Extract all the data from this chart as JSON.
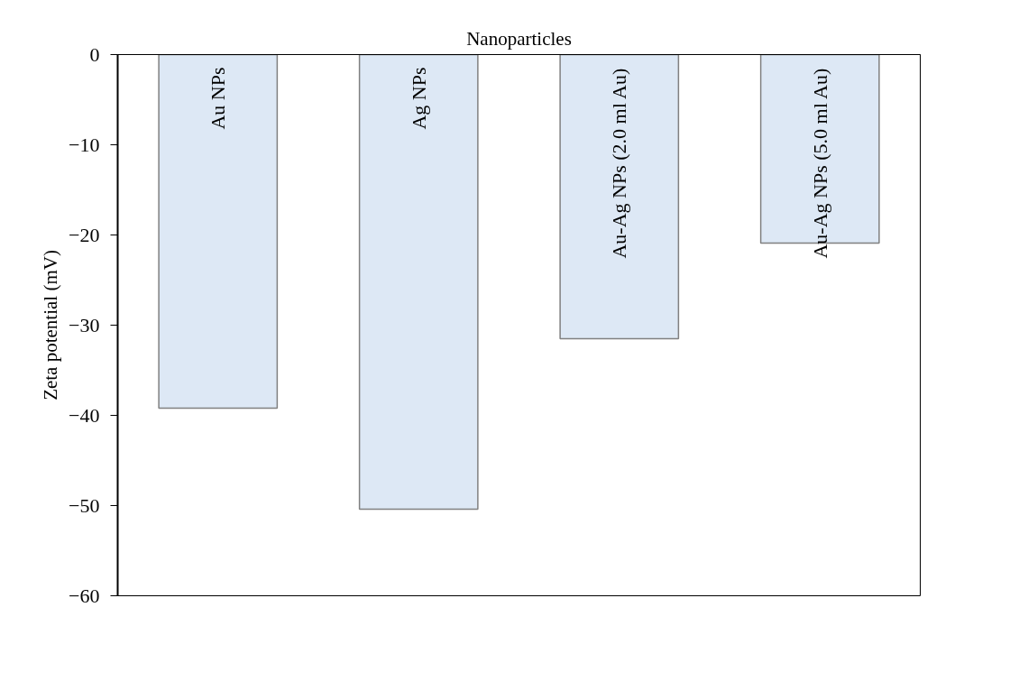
{
  "chart_data": {
    "type": "bar",
    "xlabel": "Nanoparticles",
    "ylabel": "Zeta potential (mV)",
    "categories": [
      "Au NPs",
      "Ag NPs",
      "Au-Ag NPs (2.0 ml Au)",
      "Au-Ag NPs (5.0 ml Au)"
    ],
    "values": [
      -39.2,
      -50.4,
      -31.5,
      -20.9
    ],
    "color": "#dde8f5",
    "ylim": [
      -60,
      0
    ],
    "yticks": [
      0,
      -10,
      -20,
      -30,
      -40,
      -50,
      -60
    ],
    "grid": false,
    "tick_labels": "y"
  }
}
